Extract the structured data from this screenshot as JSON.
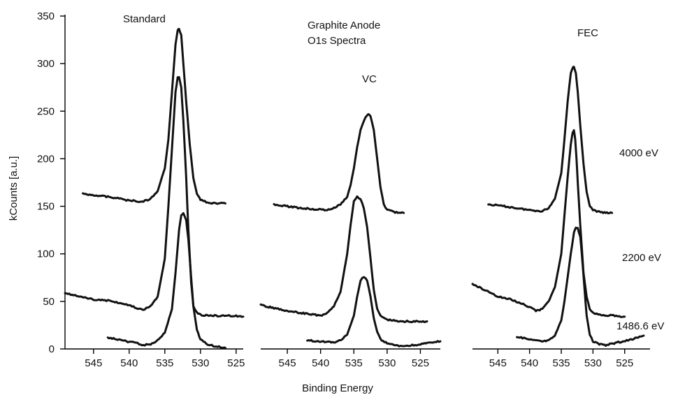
{
  "chart_data": {
    "type": "line",
    "ylabel": "kCounts [a.u.]",
    "xlabel": "Binding Energy",
    "ylim": [
      0,
      350
    ],
    "yticks": [
      0,
      50,
      100,
      150,
      200,
      250,
      300,
      350
    ],
    "xticks": [
      545,
      540,
      535,
      530,
      525
    ],
    "x_reversed": true,
    "annotations": {
      "title_line1": "Graphite Anode",
      "title_line2": "O1s Spectra",
      "energy_high": "4000 eV",
      "energy_mid": "2200 eV",
      "energy_low": "1486.6 eV"
    },
    "panels": [
      {
        "name": "Standard",
        "xlim": [
          549,
          524
        ],
        "series": [
          {
            "energy": "4000 eV",
            "x": [
              546.5,
              544,
              542,
              540,
              538,
              537,
              536,
              535,
              534.5,
              534,
              533.5,
              533.2,
              533,
              532.7,
              532.4,
              532,
              531.5,
              531,
              530.5,
              530,
              529,
              528,
              526.5
            ],
            "y": [
              163,
              161,
              159,
              156,
              155,
              158,
              166,
              190,
              220,
              270,
              320,
              335,
              336,
              330,
              300,
              260,
              215,
              180,
              163,
              157,
              154,
              153,
              153
            ]
          },
          {
            "energy": "2200 eV",
            "x": [
              549,
              547,
              545,
              543,
              541,
              540,
              539,
              538,
              537,
              536,
              535,
              534.5,
              534,
              533.5,
              533.2,
              533,
              532.7,
              532.4,
              532,
              531.7,
              531.3,
              531,
              530.5,
              530,
              529,
              528,
              526,
              524
            ],
            "y": [
              59,
              55,
              52,
              51,
              48,
              46,
              43,
              41,
              45,
              55,
              95,
              150,
              210,
              270,
              285,
              286,
              275,
              240,
              180,
              125,
              70,
              45,
              38,
              36,
              35,
              35,
              35,
              34
            ]
          },
          {
            "energy": "1486.6 eV",
            "x": [
              543,
              541,
              539,
              538,
              537,
              536,
              535,
              534,
              533.5,
              533,
              532.7,
              532.4,
              532,
              531.7,
              531.3,
              531,
              530.5,
              530,
              529,
              528,
              527,
              526.5
            ],
            "y": [
              12,
              9,
              6,
              4,
              5,
              9,
              17,
              42,
              80,
              125,
              141,
              143,
              135,
              115,
              75,
              45,
              20,
              10,
              5,
              3,
              2,
              1
            ]
          }
        ]
      },
      {
        "name": "VC",
        "xlim": [
          549,
          522
        ],
        "series": [
          {
            "energy": "4000 eV",
            "x": [
              547,
              545,
              543,
              541,
              539,
              538,
              537,
              536,
              535.5,
              535,
              534.5,
              534,
              533.5,
              533,
              532.8,
              532.5,
              532,
              531.5,
              531,
              530.5,
              530,
              529,
              528,
              527.5
            ],
            "y": [
              152,
              150,
              148,
              147,
              146,
              148,
              152,
              160,
              172,
              190,
              212,
              230,
              240,
              246,
              247,
              245,
              230,
              200,
              170,
              152,
              146,
              144,
              143,
              143
            ]
          },
          {
            "energy": "2200 eV",
            "x": [
              549,
              547,
              545,
              543,
              541,
              540,
              539,
              538,
              537,
              536,
              535.5,
              535,
              534.5,
              534,
              533.5,
              533,
              532.5,
              532,
              531.5,
              531,
              530,
              529,
              528,
              526,
              524
            ],
            "y": [
              46,
              43,
              40,
              38,
              36,
              35,
              38,
              45,
              60,
              100,
              130,
              155,
              160,
              158,
              148,
              128,
              95,
              62,
              42,
              35,
              31,
              30,
              29,
              29,
              29
            ]
          },
          {
            "energy": "1486.6 eV",
            "x": [
              542,
              540,
              538,
              537,
              536,
              535,
              534.5,
              534,
              533.5,
              533,
              532.5,
              532,
              531.5,
              531,
              530,
              529,
              528,
              526,
              524,
              522
            ],
            "y": [
              9,
              8,
              7,
              9,
              15,
              35,
              55,
              72,
              76,
              72,
              55,
              32,
              18,
              10,
              6,
              4,
              3,
              4,
              6,
              8
            ]
          }
        ]
      },
      {
        "name": "FEC",
        "xlim": [
          549,
          521
        ],
        "series": [
          {
            "energy": "4000 eV",
            "x": [
              546.5,
              544,
              542,
              540,
              538,
              537,
              536,
              535,
              534.5,
              534,
              533.5,
              533.2,
              533,
              532.7,
              532.4,
              532,
              531.5,
              531,
              530.5,
              530,
              529,
              528,
              527
            ],
            "y": [
              152,
              150,
              148,
              146,
              145,
              148,
              158,
              185,
              220,
              260,
              290,
              296,
              296,
              290,
              270,
              235,
              195,
              165,
              150,
              146,
              144,
              143,
              143
            ]
          },
          {
            "energy": "2200 eV",
            "x": [
              549,
              547,
              545,
              543,
              541,
              540,
              539,
              538,
              537,
              536,
              535,
              534.5,
              534,
              533.5,
              533.2,
              533,
              532.8,
              532.6,
              532.4,
              532,
              531.5,
              531,
              530.5,
              530,
              529,
              527,
              525
            ],
            "y": [
              68,
              62,
              55,
              52,
              47,
              44,
              40,
              42,
              50,
              65,
              100,
              140,
              180,
              215,
              228,
              230,
              220,
              200,
              175,
              130,
              80,
              55,
              42,
              38,
              36,
              35,
              34
            ]
          },
          {
            "energy": "1486.6 eV",
            "x": [
              542,
              540,
              538,
              537,
              536,
              535,
              534.5,
              534,
              533.5,
              533,
              532.7,
              532.4,
              532,
              531.7,
              531.3,
              531,
              530.5,
              530,
              529,
              528,
              526,
              524,
              522
            ],
            "y": [
              13,
              10,
              8,
              9,
              14,
              30,
              50,
              75,
              100,
              122,
              128,
              127,
              118,
              95,
              60,
              35,
              15,
              8,
              5,
              4,
              7,
              10,
              14
            ]
          }
        ]
      }
    ]
  }
}
